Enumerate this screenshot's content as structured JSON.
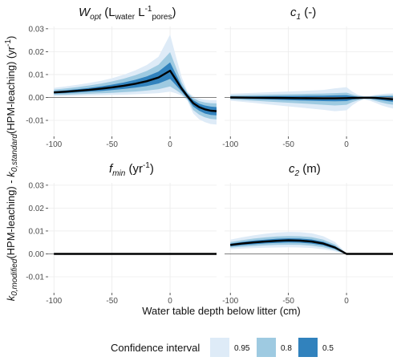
{
  "chart_data": {
    "type": "area",
    "xlabel": "Water table depth below litter (cm)",
    "ylabel": "k0,modified(HPM-leaching) - k0,standard(HPM-leaching) (yr-1)",
    "ylabel_parts": {
      "k": "k",
      "sub_mod": "0,modified",
      "mid": "(HPM-leaching) - ",
      "sub_std": "0,standard",
      "end": "(HPM-leaching) (yr",
      "sup": "-1",
      "close": ")"
    },
    "xlim": [
      -105,
      40
    ],
    "ylim": [
      -0.017,
      0.031
    ],
    "x_ticks": [
      -100,
      -50,
      0
    ],
    "y_ticks": [
      -0.01,
      0.0,
      0.01,
      0.02,
      0.03
    ],
    "y_tick_labels": [
      "-0.01",
      "0.00",
      "0.01",
      "0.02",
      "0.03"
    ],
    "x_tick_labels": [
      "-100",
      "-50",
      "0"
    ],
    "hline": 0,
    "colors": {
      "ci95": "#deebf7",
      "ci80": "#9ecae1",
      "ci50": "#3182bd",
      "median": "#000000",
      "hline": "#7f7f7f"
    },
    "legend": {
      "title": "Confidence interval",
      "position": "bottom",
      "entries": [
        {
          "label": "0.95",
          "color": "#deebf7"
        },
        {
          "label": "0.8",
          "color": "#9ecae1"
        },
        {
          "label": "0.5",
          "color": "#3182bd"
        }
      ]
    },
    "panels": [
      {
        "id": "wopt",
        "title_main": "W",
        "title_sub": "opt",
        "title_rest": " (L",
        "title_sub2": "water",
        "title_mid": " L",
        "title_sup": "-1",
        "title_sub3": "pores",
        "title_end": ")",
        "x": [
          -100,
          -90,
          -80,
          -70,
          -60,
          -50,
          -40,
          -30,
          -20,
          -10,
          0,
          5,
          10,
          15,
          20,
          25,
          30,
          35,
          40
        ],
        "median": [
          0.0022,
          0.0025,
          0.0029,
          0.0033,
          0.0038,
          0.0044,
          0.0051,
          0.006,
          0.0071,
          0.0087,
          0.0117,
          0.0078,
          0.0038,
          0.0005,
          -0.0025,
          -0.0042,
          -0.0052,
          -0.0058,
          -0.006
        ],
        "ci50": [
          [
            0.0017,
            0.0027
          ],
          [
            0.0019,
            0.0031
          ],
          [
            0.0022,
            0.0036
          ],
          [
            0.0025,
            0.0041
          ],
          [
            0.0028,
            0.0048
          ],
          [
            0.0032,
            0.0056
          ],
          [
            0.0037,
            0.0065
          ],
          [
            0.0043,
            0.0077
          ],
          [
            0.005,
            0.0092
          ],
          [
            0.0061,
            0.0113
          ],
          [
            0.0081,
            0.0153
          ],
          [
            0.0054,
            0.0102
          ],
          [
            0.0026,
            0.005
          ],
          [
            -0.0005,
            0.0015
          ],
          [
            -0.004,
            -0.0012
          ],
          [
            -0.0058,
            -0.0027
          ],
          [
            -0.007,
            -0.0035
          ],
          [
            -0.0076,
            -0.004
          ],
          [
            -0.0078,
            -0.0042
          ]
        ],
        "ci80": [
          [
            0.0011,
            0.0034
          ],
          [
            0.0012,
            0.0039
          ],
          [
            0.0014,
            0.0045
          ],
          [
            0.0016,
            0.0052
          ],
          [
            0.0018,
            0.006
          ],
          [
            0.002,
            0.007
          ],
          [
            0.0023,
            0.0082
          ],
          [
            0.0026,
            0.0097
          ],
          [
            0.003,
            0.0116
          ],
          [
            0.0036,
            0.0143
          ],
          [
            0.0048,
            0.0198
          ],
          [
            0.0033,
            0.0132
          ],
          [
            0.0015,
            0.0065
          ],
          [
            -0.001,
            0.002
          ],
          [
            -0.0055,
            -0.0003
          ],
          [
            -0.0075,
            -0.0016
          ],
          [
            -0.0087,
            -0.0022
          ],
          [
            -0.0094,
            -0.0025
          ],
          [
            -0.0096,
            -0.0026
          ]
        ],
        "ci95": [
          [
            0.0006,
            0.0042
          ],
          [
            0.0007,
            0.0048
          ],
          [
            0.0008,
            0.0055
          ],
          [
            0.0009,
            0.0063
          ],
          [
            0.001,
            0.0072
          ],
          [
            0.0011,
            0.0084
          ],
          [
            0.0012,
            0.0099
          ],
          [
            0.0014,
            0.0118
          ],
          [
            0.0016,
            0.0142
          ],
          [
            0.0019,
            0.0178
          ],
          [
            0.0025,
            0.0275
          ],
          [
            0.0018,
            0.018
          ],
          [
            0.0008,
            0.0088
          ],
          [
            -0.0015,
            0.0025
          ],
          [
            -0.007,
            0.0005
          ],
          [
            -0.0095,
            -0.0005
          ],
          [
            -0.0108,
            -0.001
          ],
          [
            -0.0116,
            -0.0012
          ],
          [
            -0.0118,
            -0.0012
          ]
        ]
      },
      {
        "id": "c1",
        "title_main": "c",
        "title_sub": "1",
        "title_rest": " (-)",
        "x": [
          -100,
          -80,
          -60,
          -40,
          -20,
          -10,
          0,
          5,
          10,
          15,
          20,
          25,
          30,
          35,
          40
        ],
        "median": [
          0.0,
          -0.0001,
          -0.0002,
          -0.0003,
          -0.0004,
          -0.0004,
          -0.0003,
          -0.0002,
          -0.0002,
          -0.0001,
          -0.0001,
          -0.0002,
          -0.0004,
          -0.0006,
          -0.0008
        ],
        "ci50": [
          [
            -0.0004,
            0.0004
          ],
          [
            -0.0007,
            0.0005
          ],
          [
            -0.001,
            0.0006
          ],
          [
            -0.0013,
            0.0007
          ],
          [
            -0.0016,
            0.0008
          ],
          [
            -0.0017,
            0.0009
          ],
          [
            -0.0016,
            0.001
          ],
          [
            -0.001,
            0.0006
          ],
          [
            -0.0006,
            0.0003
          ],
          [
            -0.0003,
            0.0002
          ],
          [
            -0.0004,
            0.0002
          ],
          [
            -0.0008,
            0.0003
          ],
          [
            -0.0012,
            0.0004
          ],
          [
            -0.0016,
            0.0005
          ],
          [
            -0.0019,
            0.0005
          ]
        ],
        "ci80": [
          [
            -0.0008,
            0.0009
          ],
          [
            -0.0014,
            0.0011
          ],
          [
            -0.002,
            0.0013
          ],
          [
            -0.0026,
            0.0015
          ],
          [
            -0.0032,
            0.0017
          ],
          [
            -0.0035,
            0.0019
          ],
          [
            -0.0032,
            0.0021
          ],
          [
            -0.002,
            0.0013
          ],
          [
            -0.0012,
            0.0007
          ],
          [
            -0.0006,
            0.0004
          ],
          [
            -0.0008,
            0.0004
          ],
          [
            -0.0015,
            0.0007
          ],
          [
            -0.0022,
            0.0009
          ],
          [
            -0.0028,
            0.001
          ],
          [
            -0.0032,
            0.0011
          ]
        ],
        "ci95": [
          [
            -0.0014,
            0.0016
          ],
          [
            -0.0024,
            0.002
          ],
          [
            -0.0034,
            0.0024
          ],
          [
            -0.0044,
            0.0028
          ],
          [
            -0.0054,
            0.0033
          ],
          [
            -0.006,
            0.004
          ],
          [
            -0.0056,
            0.0045
          ],
          [
            -0.0034,
            0.0025
          ],
          [
            -0.0018,
            0.0012
          ],
          [
            -0.0009,
            0.0006
          ],
          [
            -0.0014,
            0.0007
          ],
          [
            -0.0024,
            0.0012
          ],
          [
            -0.0034,
            0.0015
          ],
          [
            -0.0042,
            0.0017
          ],
          [
            -0.0048,
            0.0018
          ]
        ]
      },
      {
        "id": "fmin",
        "title_main": "f",
        "title_sub": "min",
        "title_rest": " (yr",
        "title_sup": "-1",
        "title_end": ")",
        "x": [
          -100,
          -50,
          0,
          20,
          40
        ],
        "median": [
          0,
          0,
          0,
          0,
          0
        ],
        "ci50": [
          [
            -0.0002,
            0.0002
          ],
          [
            -0.0002,
            0.0002
          ],
          [
            -0.0002,
            0.0002
          ],
          [
            -0.0002,
            0.0002
          ],
          [
            -0.0002,
            0.0002
          ]
        ],
        "ci80": [
          [
            -0.0003,
            0.0003
          ],
          [
            -0.0003,
            0.0003
          ],
          [
            -0.0003,
            0.0003
          ],
          [
            -0.0003,
            0.0003
          ],
          [
            -0.0003,
            0.0003
          ]
        ],
        "ci95": [
          [
            -0.0004,
            0.0004
          ],
          [
            -0.0004,
            0.0004
          ],
          [
            -0.0004,
            0.0004
          ],
          [
            -0.0004,
            0.0004
          ],
          [
            -0.0004,
            0.0004
          ]
        ]
      },
      {
        "id": "c2",
        "title_main": "c",
        "title_sub": "2",
        "title_rest": " (m)",
        "x": [
          -100,
          -90,
          -80,
          -70,
          -60,
          -50,
          -40,
          -30,
          -20,
          -10,
          -5,
          0,
          5,
          10,
          20,
          30,
          40
        ],
        "median": [
          0.0039,
          0.0045,
          0.005,
          0.0054,
          0.0057,
          0.0059,
          0.0058,
          0.0054,
          0.0045,
          0.0028,
          0.0014,
          0.0,
          0.0,
          0.0,
          0.0,
          0.0,
          0.0
        ],
        "ci50": [
          [
            0.0033,
            0.0045
          ],
          [
            0.0038,
            0.0052
          ],
          [
            0.0042,
            0.0058
          ],
          [
            0.0046,
            0.0062
          ],
          [
            0.0048,
            0.0066
          ],
          [
            0.005,
            0.0068
          ],
          [
            0.0049,
            0.0067
          ],
          [
            0.0045,
            0.0063
          ],
          [
            0.0037,
            0.0053
          ],
          [
            0.0022,
            0.0034
          ],
          [
            0.001,
            0.0018
          ],
          [
            -0.0001,
            0.0001
          ],
          [
            -0.0001,
            0.0001
          ],
          [
            -0.0001,
            0.0001
          ],
          [
            -0.0001,
            0.0001
          ],
          [
            -0.0001,
            0.0001
          ],
          [
            -0.0001,
            0.0001
          ]
        ],
        "ci80": [
          [
            0.0027,
            0.0052
          ],
          [
            0.0031,
            0.006
          ],
          [
            0.0034,
            0.0067
          ],
          [
            0.0037,
            0.0072
          ],
          [
            0.0039,
            0.0076
          ],
          [
            0.004,
            0.0078
          ],
          [
            0.0039,
            0.0077
          ],
          [
            0.0036,
            0.0073
          ],
          [
            0.0029,
            0.0062
          ],
          [
            0.0017,
            0.0041
          ],
          [
            0.0007,
            0.0022
          ],
          [
            -0.0002,
            0.0002
          ],
          [
            -0.0002,
            0.0002
          ],
          [
            -0.0002,
            0.0002
          ],
          [
            -0.0002,
            0.0002
          ],
          [
            -0.0002,
            0.0002
          ],
          [
            -0.0002,
            0.0002
          ]
        ],
        "ci95": [
          [
            0.002,
            0.0062
          ],
          [
            0.0023,
            0.0072
          ],
          [
            0.0025,
            0.0081
          ],
          [
            0.0027,
            0.0088
          ],
          [
            0.0028,
            0.0093
          ],
          [
            0.0029,
            0.0096
          ],
          [
            0.0028,
            0.0095
          ],
          [
            0.0026,
            0.009
          ],
          [
            0.002,
            0.0077
          ],
          [
            0.0011,
            0.0052
          ],
          [
            0.0004,
            0.0028
          ],
          [
            -0.0003,
            0.0003
          ],
          [
            -0.0003,
            0.0003
          ],
          [
            -0.0003,
            0.0003
          ],
          [
            -0.0003,
            0.0003
          ],
          [
            -0.0003,
            0.0003
          ],
          [
            -0.0003,
            0.0003
          ]
        ]
      }
    ]
  }
}
